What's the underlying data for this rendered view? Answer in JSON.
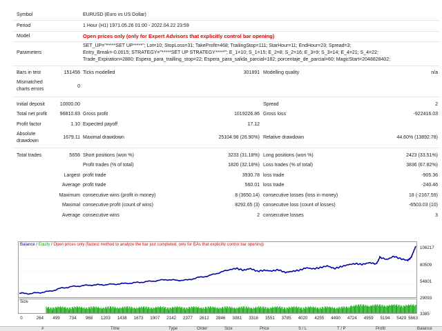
{
  "report": {
    "symbol_label": "Symbol",
    "symbol_value": "EURUSD (Euro vs US Dollar)",
    "period_label": "Period",
    "period_value": "1 Hour (H1) 1971.05.26 01:00 - 2022.04.22 23:59",
    "model_label": "Model",
    "model_value": "Open prices only (only for Expert Advisors that explicitly control bar opening)",
    "parameters_label": "Parameters",
    "parameters_lines": [
      "SET_UP=\"*****SET UP*****\"; Lot=10; StopLoss=31; TakeProfit=468; TrailingStop=111; StarHour=11; EndHour=23; Spread=3;",
      "Entry_Break=-0.0015; STRATEGY=\"*****SET UP STRATEGY*****\"; E_1=10; S_1=15; E_2=8; S_2=16; E_3=9; S_3=14; E_4=21; S_4=22;",
      "Trade_Expiration=2880; Espera_para_trailling_stop=22; Espera_para_salida_parcial=182; porcentaje_de_parcial=60; MagicStart=2048828402;"
    ]
  },
  "stats": {
    "bars_label": "Bars in test",
    "bars_value": "151456",
    "ticks_label": "Ticks modelled",
    "ticks_value": "301891",
    "quality_label": "Modelling quality",
    "quality_value": "n/a",
    "mismatch_label_1": "Mismatched",
    "mismatch_label_2": "charts errors",
    "mismatch_value": "0",
    "initial_deposit_label": "Initial deposit",
    "initial_deposit_value": "10000.00",
    "spread_label": "Spread",
    "spread_value": "2",
    "net_profit_label": "Total net profit",
    "net_profit_value": "96810.83",
    "gross_profit_label": "Gross profit",
    "gross_profit_value": "1019226.86",
    "gross_loss_label": "Gross loss",
    "gross_loss_value": "-922416.03",
    "profit_factor_label": "Profit factor",
    "profit_factor_value": "1.10",
    "expected_payoff_label": "Expected payoff",
    "expected_payoff_value": "17.12",
    "abs_drawdown_label_1": "Absolute",
    "abs_drawdown_label_2": "drawdown",
    "abs_drawdown_value": "1679.11",
    "max_drawdown_label": "Maximal drawdown",
    "max_drawdown_value": "25104.98 (26.90%)",
    "rel_drawdown_label": "Relative drawdown",
    "rel_drawdown_value": "44.60% (13892.78)",
    "total_trades_label": "Total trades",
    "total_trades_value": "5656",
    "short_label": "Short positions (won %)",
    "short_value": "3233 (31.18%)",
    "long_label": "Long positions (won %)",
    "long_value": "2423 (33.51%)",
    "profit_trades_label": "Profit trades (% of total)",
    "profit_trades_value": "1820 (32.18%)",
    "loss_trades_label": "Loss trades (% of total)",
    "loss_trades_value": "3836 (67.82%)",
    "largest_label": "Largest",
    "largest_profit_label": "profit trade",
    "largest_profit_value": "3930.78",
    "largest_loss_label": "loss trade",
    "largest_loss_value": "-905.36",
    "average_label": "Average",
    "average_profit_label": "profit trade",
    "average_profit_value": "560.01",
    "average_loss_label": "loss trade",
    "average_loss_value": "-240.46",
    "maximum_label": "Maximum",
    "max_cons_wins_label": "consecutive wins (profit in money)",
    "max_cons_wins_value": "8 (3650.14)",
    "max_cons_losses_label": "consecutive losses (loss in money)",
    "max_cons_losses_value": "18 (-2167.59)",
    "maximal_label": "Maximal",
    "maximal_cons_profit_label": "consecutive profit (count of wins)",
    "maximal_cons_profit_value": "8292.65 (3)",
    "maximal_cons_loss_label": "consecutive loss (count of losses)",
    "maximal_cons_loss_value": "-6503.03 (10)",
    "average2_label": "Average",
    "avg_cons_wins_label": "consecutive wins",
    "avg_cons_wins_value": "2",
    "avg_cons_losses_label": "consecutive losses",
    "avg_cons_losses_value": "3"
  },
  "chart_data": {
    "type": "line",
    "legend_balance": "Balance",
    "legend_sep1": " / ",
    "legend_equity": "Equity",
    "legend_sep2": " / ",
    "legend_note": "Open prices only (fastest method to analyze the bar just completed, only for EAs that explicitly control bar opening)",
    "y_ticks": [
      "106217",
      "80509",
      "54801",
      "29093",
      "3385"
    ],
    "y_tick_values": [
      106217,
      80509,
      54801,
      29093,
      3385
    ],
    "ylim": [
      3385,
      106217
    ],
    "x_ticks": [
      "0",
      "264",
      "499",
      "734",
      "968",
      "1203",
      "1438",
      "1673",
      "1907",
      "2142",
      "2377",
      "2612",
      "2846",
      "3081",
      "3316",
      "3551",
      "3785",
      "4020",
      "4255",
      "4490",
      "4724",
      "4959",
      "5194",
      "5429",
      "5663"
    ],
    "xlim": [
      0,
      5663
    ],
    "series": [
      {
        "name": "Balance",
        "color": "#0000a8",
        "x": [
          0,
          150,
          300,
          450,
          600,
          750,
          900,
          1050,
          1200,
          1350,
          1500,
          1650,
          1800,
          1950,
          2100,
          2250,
          2400,
          2550,
          2700,
          2850,
          3000,
          3100,
          3200,
          3300,
          3400,
          3500,
          3600,
          3700,
          3800,
          3900,
          4000,
          4100,
          4200,
          4300,
          4400,
          4500,
          4600,
          4700,
          4800,
          4900,
          5000,
          5100,
          5150,
          5250,
          5350,
          5450,
          5550,
          5600,
          5663
        ],
        "values": [
          10000,
          9500,
          11500,
          14500,
          20500,
          23500,
          25500,
          27000,
          27500,
          28500,
          30000,
          31500,
          33500,
          35500,
          38000,
          36500,
          37000,
          42000,
          45500,
          52000,
          58000,
          61000,
          57000,
          60500,
          55000,
          57000,
          55500,
          58000,
          52500,
          55000,
          57000,
          62000,
          60000,
          62500,
          66000,
          60500,
          64500,
          68500,
          70500,
          69000,
          72500,
          70000,
          83500,
          79000,
          85500,
          80500,
          77000,
          84000,
          106217
        ]
      }
    ],
    "size_label": "Size"
  },
  "table_header": {
    "col1": "#",
    "col2": "Time",
    "col3": "Type",
    "col4": "Order",
    "col5": "Size",
    "col6": "Price",
    "col7": "S / L",
    "col8": "T / P",
    "col9": "Profit",
    "col10": "Balance"
  },
  "colors": {
    "model_text": "#e00000",
    "balance_line": "#0000a8",
    "equity_line": "#00b000",
    "size_bars": "#00a000"
  }
}
